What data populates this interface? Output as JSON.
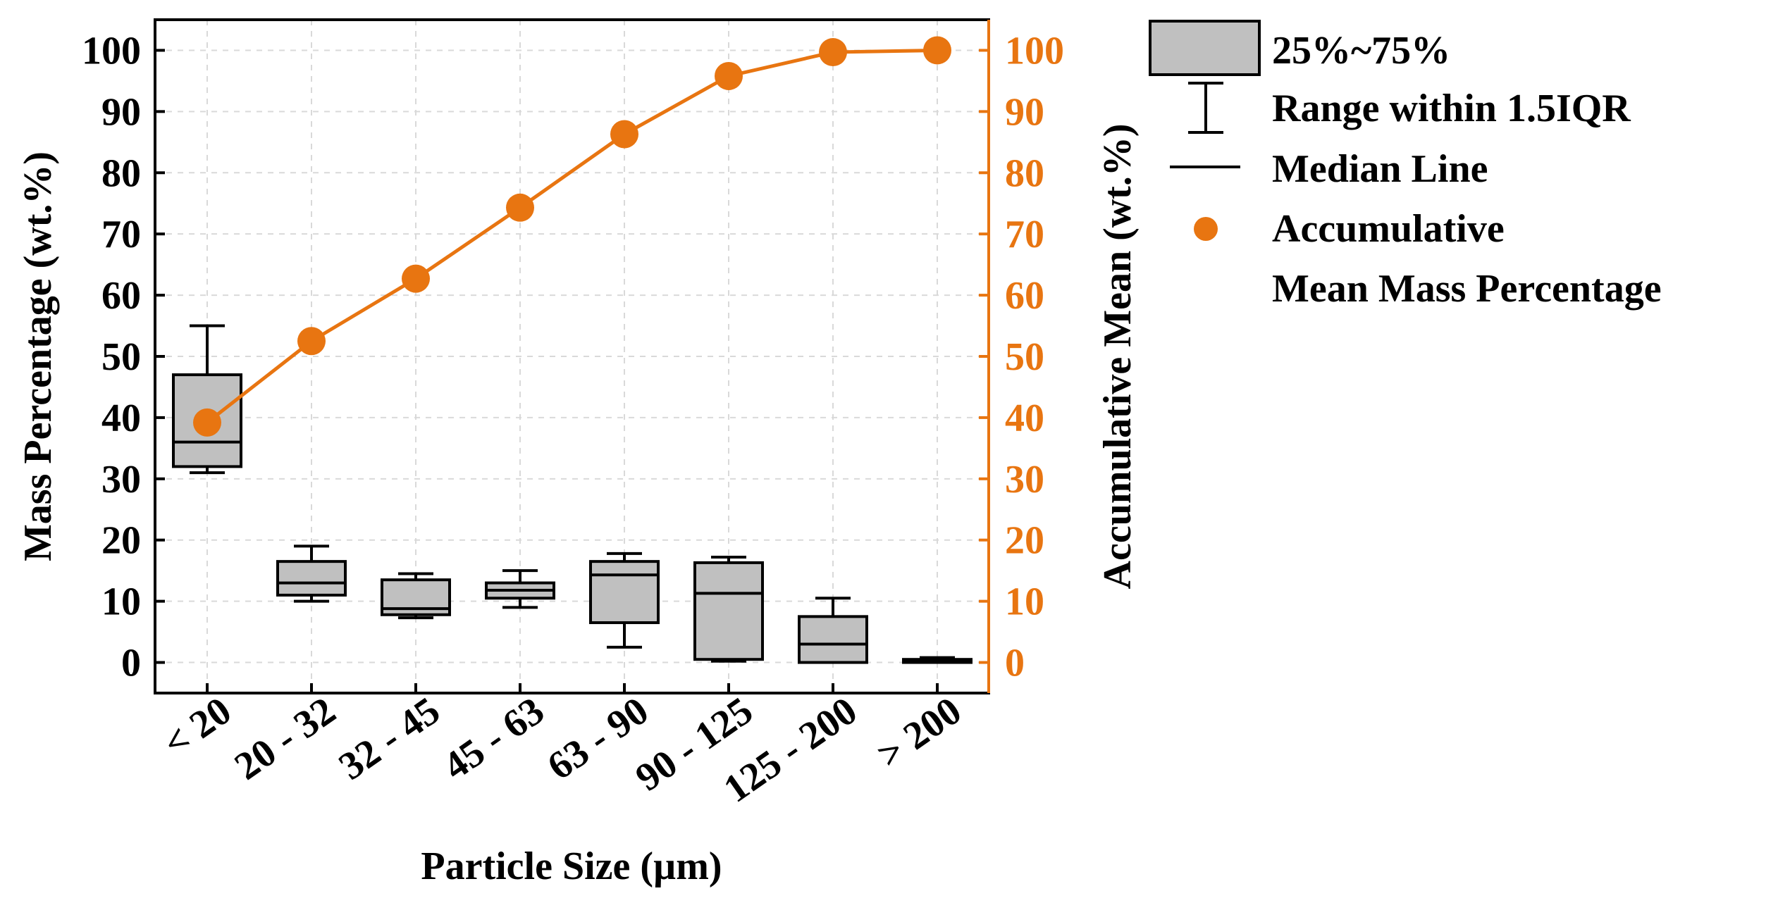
{
  "chart_data": {
    "type": "box",
    "xlabel": "Particle Size (µm)",
    "ylabel_left": "Mass Percentage (wt.%)",
    "ylabel_right": "Accumulative Mean (wt.%)",
    "ylim_left": [
      -5,
      105
    ],
    "ylim_right": [
      -5,
      105
    ],
    "yticks": [
      0,
      10,
      20,
      30,
      40,
      50,
      60,
      70,
      80,
      90,
      100
    ],
    "grid": true,
    "categories": [
      "< 20",
      "20 - 32",
      "32 - 45",
      "45 - 63",
      "63 - 90",
      "90 - 125",
      "125 - 200",
      "> 200"
    ],
    "boxes": [
      {
        "whisker_low": 31,
        "q1": 32,
        "median": 36,
        "q3": 47,
        "whisker_high": 55
      },
      {
        "whisker_low": 10,
        "q1": 11,
        "median": 13,
        "q3": 16.5,
        "whisker_high": 19
      },
      {
        "whisker_low": 7.3,
        "q1": 7.8,
        "median": 8.8,
        "q3": 13.5,
        "whisker_high": 14.5
      },
      {
        "whisker_low": 9,
        "q1": 10.5,
        "median": 11.8,
        "q3": 13,
        "whisker_high": 15
      },
      {
        "whisker_low": 2.5,
        "q1": 6.5,
        "median": 14.3,
        "q3": 16.5,
        "whisker_high": 17.8
      },
      {
        "whisker_low": 0.2,
        "q1": 0.5,
        "median": 11.3,
        "q3": 16.3,
        "whisker_high": 17.2
      },
      {
        "whisker_low": 0,
        "q1": 0,
        "median": 3,
        "q3": 7.5,
        "whisker_high": 10.5
      },
      {
        "whisker_low": 0,
        "q1": 0,
        "median": 0.3,
        "q3": 0.5,
        "whisker_high": 0.8
      }
    ],
    "series": [
      {
        "name": "Accumulative Mean Mass Percentage",
        "axis": "right",
        "color": "#E87511",
        "values": [
          39.2,
          52.5,
          62.7,
          74.3,
          86.3,
          95.8,
          99.7,
          100
        ]
      }
    ],
    "box_fill": "#C0C0C0",
    "legend": {
      "position": "right",
      "items": [
        {
          "label": "25%~75%",
          "kind": "box"
        },
        {
          "label": "Range within 1.5IQR",
          "kind": "whisker"
        },
        {
          "label": "Median Line",
          "kind": "median"
        },
        {
          "label": "Accumulative",
          "label2": "Mean Mass Percentage",
          "kind": "dot"
        }
      ]
    }
  }
}
